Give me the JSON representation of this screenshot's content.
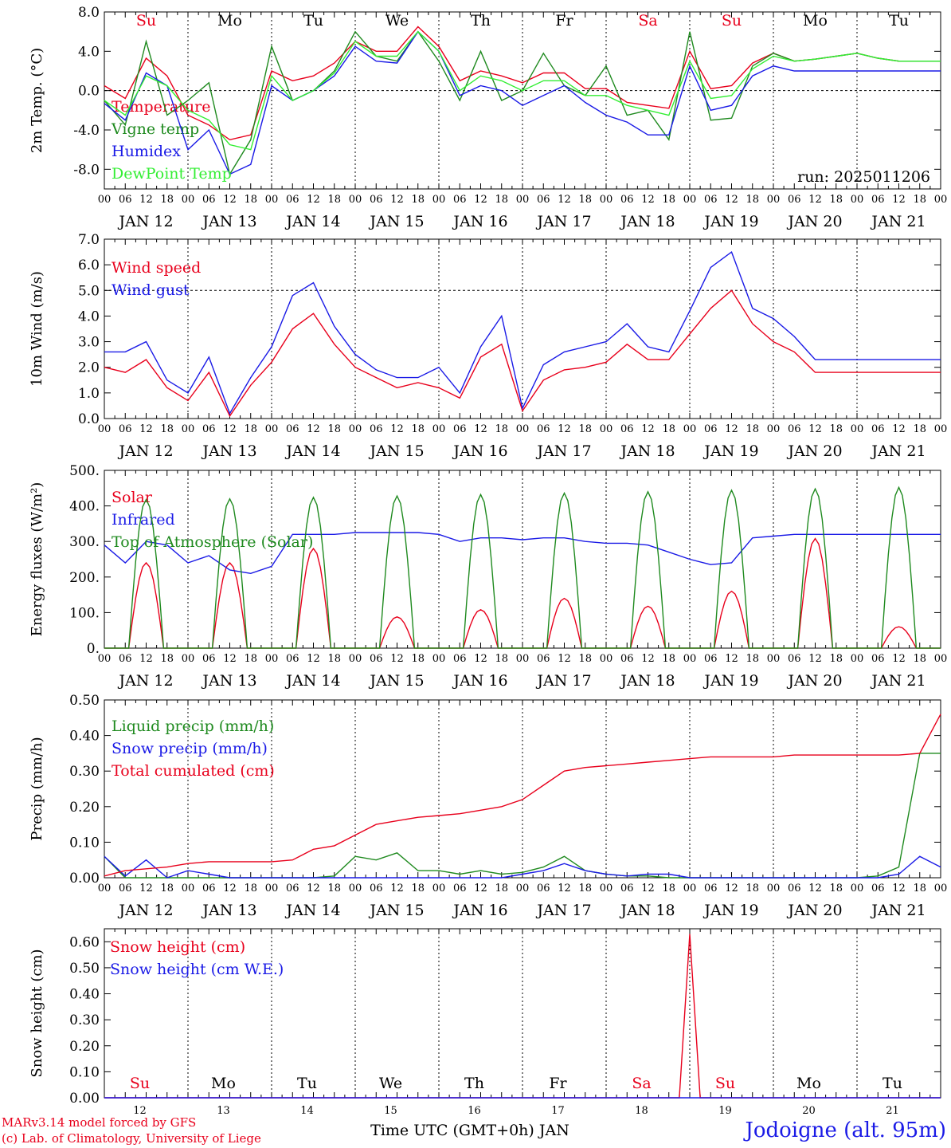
{
  "colors": {
    "red": "#e8001c",
    "green": "#1f8a1f",
    "blue": "#1a1ae6",
    "lightgreen": "#33ee33",
    "axis": "#000000"
  },
  "days": {
    "ticks_hours": [
      "00",
      "06",
      "12",
      "18"
    ],
    "dates": [
      "JAN 12",
      "JAN 13",
      "JAN 14",
      "JAN 15",
      "JAN 16",
      "JAN 17",
      "JAN 18",
      "JAN 19",
      "JAN 20",
      "JAN 21"
    ],
    "weekdays": [
      "Su",
      "Mo",
      "Tu",
      "We",
      "Th",
      "Fr",
      "Sa",
      "Su",
      "Mo",
      "Tu"
    ],
    "weekday_colors": [
      "red",
      "black",
      "black",
      "black",
      "black",
      "black",
      "red",
      "red",
      "black",
      "black"
    ],
    "day_numbers": [
      "12",
      "13",
      "14",
      "15",
      "16",
      "17",
      "18",
      "19",
      "20",
      "21"
    ]
  },
  "run_label": "run: 2025011206",
  "xlabel": "Time UTC (GMT+0h) JAN",
  "station": "Jodoigne (alt. 95m)",
  "credits": [
    "MARv3.14 model forced by GFS",
    "(c) Lab. of Climatology, University of Liege"
  ],
  "chart_data": [
    {
      "type": "line",
      "ylabel": "2m Temp. (°C)",
      "ylim": [
        -10,
        8
      ],
      "yticks": [
        "8.0",
        "4.0",
        "0.0",
        "-4.0",
        "-8.0"
      ],
      "ytick_values": [
        8,
        4,
        0,
        -4,
        -8
      ],
      "dashed_ref": 0,
      "x_unit": "hours since JAN 12 00 UTC",
      "series": [
        {
          "name": "Temperature",
          "color": "red",
          "x": [
            0,
            6,
            12,
            18,
            24,
            30,
            36,
            42,
            48,
            54,
            60,
            66,
            72,
            78,
            84,
            90,
            96,
            102,
            108,
            114,
            120,
            126,
            132,
            138,
            144,
            150,
            156,
            162,
            168,
            174,
            180,
            186,
            192,
            198,
            204,
            210,
            216,
            222,
            228,
            234,
            240
          ],
          "y": [
            0.5,
            -0.8,
            3.3,
            1.5,
            -2.5,
            -3.5,
            -5.0,
            -4.5,
            2.0,
            1.0,
            1.5,
            2.8,
            5.0,
            4.0,
            4.0,
            6.5,
            4.5,
            1.0,
            2.0,
            1.5,
            0.8,
            1.8,
            1.8,
            0.2,
            0.2,
            -1.2,
            -1.5,
            -1.8,
            4.0,
            0.2,
            0.5,
            2.8,
            3.8,
            3.0,
            3.2,
            3.5,
            3.8,
            3.3,
            3.0,
            3.0,
            3.0
          ]
        },
        {
          "name": "Vigne temp",
          "color": "green",
          "x": [
            0,
            6,
            12,
            18,
            24,
            30,
            36,
            42,
            48,
            54,
            60,
            66,
            72,
            78,
            84,
            90,
            96,
            102,
            108,
            114,
            120,
            126,
            132,
            138,
            144,
            150,
            156,
            162,
            168,
            174,
            180,
            186,
            192,
            198,
            204,
            210,
            216,
            222,
            228,
            234,
            240
          ],
          "y": [
            -1.0,
            -3.5,
            5.0,
            -2.5,
            -1.0,
            0.8,
            -8.5,
            -5.0,
            4.5,
            -1.0,
            0.0,
            2.0,
            6.0,
            3.5,
            3.0,
            6.0,
            3.0,
            -1.0,
            4.0,
            -1.0,
            0.0,
            3.8,
            0.5,
            -0.5,
            2.5,
            -2.5,
            -2.0,
            -5.0,
            6.0,
            -3.0,
            -2.8,
            2.5,
            3.8,
            3.0,
            3.2,
            3.5,
            3.8,
            3.3,
            3.0,
            3.0,
            3.0
          ]
        },
        {
          "name": "Humidex",
          "color": "blue",
          "x": [
            0,
            6,
            12,
            18,
            24,
            30,
            36,
            42,
            48,
            54,
            60,
            66,
            72,
            78,
            84,
            90,
            96,
            102,
            108,
            114,
            120,
            126,
            132,
            138,
            144,
            150,
            156,
            162,
            168,
            174,
            180,
            186,
            192,
            198,
            204,
            210,
            216,
            222,
            228,
            234,
            240
          ],
          "y": [
            -1.3,
            -3.0,
            1.8,
            0.5,
            -6.0,
            -4.0,
            -8.5,
            -7.5,
            0.5,
            -1.0,
            0.0,
            1.5,
            4.5,
            3.0,
            2.8,
            6.0,
            4.0,
            -0.5,
            0.5,
            0.0,
            -1.5,
            -0.5,
            0.5,
            -1.2,
            -2.5,
            -3.2,
            -4.5,
            -4.5,
            2.5,
            -2.0,
            -1.5,
            1.5,
            2.5,
            2.0,
            2.0,
            2.0,
            2.0,
            2.0,
            2.0,
            2.0,
            2.0
          ]
        },
        {
          "name": "DewPoint Temp",
          "color": "lightgreen",
          "x": [
            0,
            6,
            12,
            18,
            24,
            30,
            36,
            42,
            48,
            54,
            60,
            66,
            72,
            78,
            84,
            90,
            96,
            102,
            108,
            114,
            120,
            126,
            132,
            138,
            144,
            150,
            156,
            162,
            168,
            174,
            180,
            186,
            192,
            198,
            204,
            210,
            216,
            222,
            228,
            234,
            240
          ],
          "y": [
            -1.0,
            -2.5,
            1.5,
            0.5,
            -2.0,
            -3.0,
            -5.5,
            -6.0,
            1.5,
            -1.0,
            0.0,
            1.8,
            5.0,
            3.5,
            3.5,
            6.0,
            4.0,
            0.0,
            1.5,
            1.0,
            0.0,
            1.0,
            1.0,
            -0.5,
            -0.5,
            -1.5,
            -2.0,
            -2.5,
            3.0,
            -0.8,
            -0.5,
            2.2,
            3.5,
            3.0,
            3.2,
            3.5,
            3.8,
            3.3,
            3.0,
            3.0,
            3.0
          ]
        }
      ]
    },
    {
      "type": "line",
      "ylabel": "10m Wind (m/s)",
      "ylim": [
        0,
        7
      ],
      "yticks": [
        "7.0",
        "6.0",
        "5.0",
        "4.0",
        "3.0",
        "2.0",
        "1.0",
        "0.0"
      ],
      "ytick_values": [
        7,
        6,
        5,
        4,
        3,
        2,
        1,
        0
      ],
      "dashed_ref": 5,
      "x_unit": "hours since JAN 12 00 UTC",
      "series": [
        {
          "name": "Wind speed",
          "color": "red",
          "x": [
            0,
            6,
            12,
            18,
            24,
            30,
            36,
            42,
            48,
            54,
            60,
            66,
            72,
            78,
            84,
            90,
            96,
            102,
            108,
            114,
            120,
            126,
            132,
            138,
            144,
            150,
            156,
            162,
            168,
            174,
            180,
            186,
            192,
            198,
            204,
            210,
            216,
            222,
            228,
            234,
            240
          ],
          "y": [
            2.0,
            1.8,
            2.3,
            1.2,
            0.7,
            1.8,
            0.1,
            1.3,
            2.2,
            3.5,
            4.1,
            2.9,
            2.0,
            1.6,
            1.2,
            1.4,
            1.2,
            0.8,
            2.4,
            2.9,
            0.3,
            1.5,
            1.9,
            2.0,
            2.2,
            2.9,
            2.3,
            2.3,
            3.3,
            4.3,
            5.0,
            3.7,
            3.0,
            2.6,
            1.8,
            1.8,
            1.8,
            1.8,
            1.8,
            1.8,
            1.8
          ]
        },
        {
          "name": "Wind gust",
          "color": "blue",
          "x": [
            0,
            6,
            12,
            18,
            24,
            30,
            36,
            42,
            48,
            54,
            60,
            66,
            72,
            78,
            84,
            90,
            96,
            102,
            108,
            114,
            120,
            126,
            132,
            138,
            144,
            150,
            156,
            162,
            168,
            174,
            180,
            186,
            192,
            198,
            204,
            210,
            216,
            222,
            228,
            234,
            240
          ],
          "y": [
            2.6,
            2.6,
            3.0,
            1.5,
            1.0,
            2.4,
            0.2,
            1.6,
            2.8,
            4.8,
            5.3,
            3.6,
            2.5,
            1.9,
            1.6,
            1.6,
            2.0,
            1.0,
            2.8,
            4.0,
            0.4,
            2.1,
            2.6,
            2.8,
            3.0,
            3.7,
            2.8,
            2.6,
            4.2,
            5.9,
            6.5,
            4.3,
            3.9,
            3.2,
            2.3,
            2.3,
            2.3,
            2.3,
            2.3,
            2.3,
            2.3
          ]
        }
      ]
    },
    {
      "type": "line",
      "ylabel": "Energy fluxes (W/m²)",
      "ylim": [
        0,
        500
      ],
      "yticks": [
        "500.",
        "400.",
        "300.",
        "200.",
        "100.",
        "0."
      ],
      "ytick_values": [
        500,
        400,
        300,
        200,
        100,
        0
      ],
      "x_unit": "hours since JAN 12 00 UTC",
      "series": [
        {
          "name": "Solar",
          "color": "red",
          "peaks": [
            240,
            240,
            280,
            88,
            108,
            140,
            118,
            160,
            308,
            60
          ]
        },
        {
          "name": "Infrared",
          "color": "blue",
          "x": [
            0,
            6,
            12,
            18,
            24,
            30,
            36,
            42,
            48,
            54,
            60,
            66,
            72,
            78,
            84,
            90,
            96,
            102,
            108,
            114,
            120,
            126,
            132,
            138,
            144,
            150,
            156,
            162,
            168,
            174,
            180,
            186,
            192,
            198,
            204,
            210,
            216,
            222,
            228,
            234,
            240
          ],
          "y": [
            290,
            240,
            300,
            290,
            240,
            260,
            220,
            210,
            230,
            320,
            320,
            320,
            325,
            325,
            325,
            325,
            320,
            300,
            310,
            310,
            305,
            310,
            310,
            300,
            295,
            295,
            290,
            270,
            250,
            235,
            240,
            310,
            315,
            320,
            320,
            320,
            320,
            320,
            320,
            320,
            320
          ]
        },
        {
          "name": "Top of Atmosphere (Solar)",
          "color": "green",
          "peaks": [
            418,
            420,
            424,
            428,
            432,
            436,
            440,
            444,
            448,
            452
          ]
        }
      ]
    },
    {
      "type": "line",
      "ylabel": "Precip (mm/h)",
      "ylim": [
        0,
        0.5
      ],
      "yticks": [
        "0.50",
        "0.40",
        "0.30",
        "0.20",
        "0.10",
        "0.00"
      ],
      "ytick_values": [
        0.5,
        0.4,
        0.3,
        0.2,
        0.1,
        0
      ],
      "x_unit": "hours since JAN 12 00 UTC",
      "series": [
        {
          "name": "Liquid precip (mm/h)",
          "color": "green",
          "x": [
            0,
            6,
            12,
            18,
            24,
            30,
            36,
            42,
            48,
            54,
            60,
            66,
            72,
            78,
            84,
            90,
            96,
            102,
            108,
            114,
            120,
            126,
            132,
            138,
            144,
            150,
            156,
            162,
            168,
            174,
            180,
            186,
            192,
            198,
            204,
            210,
            216,
            222,
            228,
            234,
            240
          ],
          "y": [
            0.06,
            0.0,
            0.0,
            0.0,
            0.0,
            0.0,
            0.0,
            0.0,
            0.0,
            0.0,
            0.0,
            0.005,
            0.06,
            0.05,
            0.07,
            0.02,
            0.02,
            0.01,
            0.02,
            0.01,
            0.015,
            0.03,
            0.06,
            0.02,
            0.01,
            0.005,
            0.005,
            0.0,
            0.0,
            0.0,
            0.0,
            0.0,
            0.0,
            0.0,
            0.0,
            0.0,
            0.0,
            0.005,
            0.03,
            0.35,
            0.35
          ]
        },
        {
          "name": "Snow precip (mm/h)",
          "color": "blue",
          "x": [
            0,
            6,
            12,
            18,
            24,
            30,
            36,
            42,
            48,
            54,
            60,
            66,
            72,
            78,
            84,
            90,
            96,
            102,
            108,
            114,
            120,
            126,
            132,
            138,
            144,
            150,
            156,
            162,
            168,
            174,
            180,
            186,
            192,
            198,
            204,
            210,
            216,
            222,
            228,
            234,
            240
          ],
          "y": [
            0.06,
            0.005,
            0.05,
            0.0,
            0.02,
            0.01,
            0.0,
            0.0,
            0.0,
            0.0,
            0.0,
            0.0,
            0.0,
            0.0,
            0.0,
            0.0,
            0.0,
            0.0,
            0.0,
            0.0,
            0.01,
            0.02,
            0.04,
            0.02,
            0.01,
            0.005,
            0.01,
            0.01,
            0.0,
            0.0,
            0.0,
            0.0,
            0.0,
            0.0,
            0.0,
            0.0,
            0.0,
            0.0,
            0.01,
            0.06,
            0.03
          ]
        },
        {
          "name": "Total cumulated (cm)",
          "color": "red",
          "x": [
            0,
            6,
            12,
            18,
            24,
            30,
            36,
            42,
            48,
            54,
            60,
            66,
            72,
            78,
            84,
            90,
            96,
            102,
            108,
            114,
            120,
            126,
            132,
            138,
            144,
            150,
            156,
            162,
            168,
            174,
            180,
            186,
            192,
            198,
            204,
            210,
            216,
            222,
            228,
            234,
            240
          ],
          "y": [
            0.005,
            0.02,
            0.025,
            0.03,
            0.04,
            0.045,
            0.045,
            0.045,
            0.045,
            0.05,
            0.08,
            0.09,
            0.12,
            0.15,
            0.16,
            0.17,
            0.175,
            0.18,
            0.19,
            0.2,
            0.22,
            0.26,
            0.3,
            0.31,
            0.315,
            0.32,
            0.325,
            0.33,
            0.335,
            0.34,
            0.34,
            0.34,
            0.34,
            0.345,
            0.345,
            0.345,
            0.345,
            0.345,
            0.345,
            0.35,
            0.46
          ]
        }
      ]
    },
    {
      "type": "line",
      "ylabel": "Snow height (cm)",
      "ylim": [
        0,
        0.65
      ],
      "yticks": [
        "0.60",
        "0.50",
        "0.40",
        "0.30",
        "0.20",
        "0.10",
        "0.00"
      ],
      "ytick_values": [
        0.6,
        0.5,
        0.4,
        0.3,
        0.2,
        0.1,
        0
      ],
      "x_unit": "hours since JAN 12 00 UTC",
      "series": [
        {
          "name": "Snow height (cm)",
          "color": "red",
          "x": [
            0,
            165,
            168,
            171,
            240
          ],
          "y": [
            0,
            0,
            0.63,
            0,
            0
          ]
        },
        {
          "name": "Snow height (cm W.E.)",
          "color": "blue",
          "x": [
            0,
            240
          ],
          "y": [
            0,
            0
          ]
        }
      ]
    }
  ]
}
